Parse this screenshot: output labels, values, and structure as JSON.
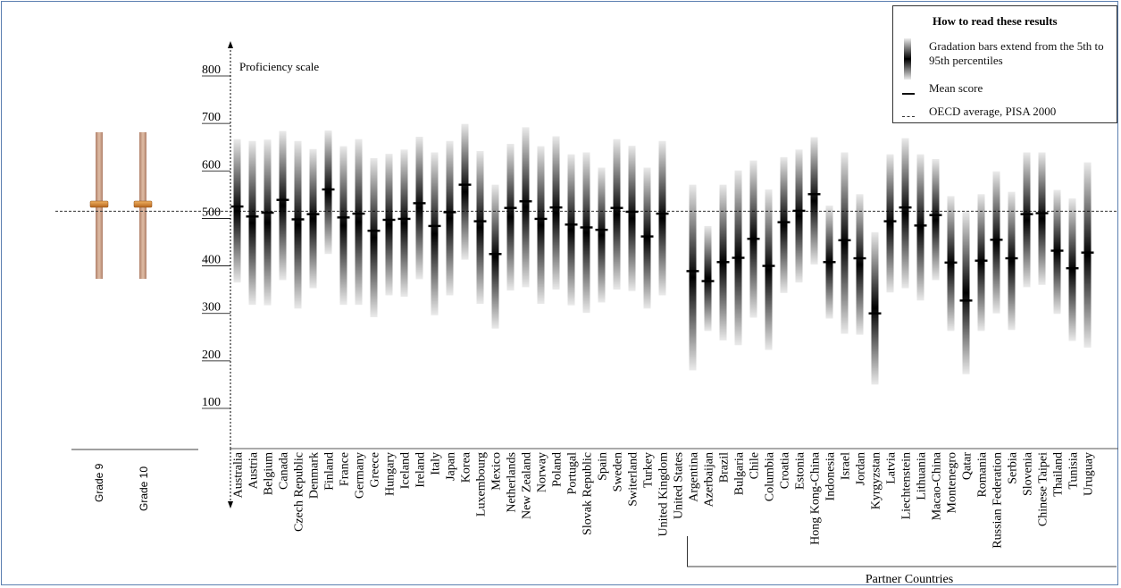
{
  "chart_data": {
    "type": "range-bar",
    "ylabel": "Proficiency scale",
    "yticks": [
      100,
      200,
      300,
      400,
      500,
      600,
      700,
      800
    ],
    "ylim": [
      0,
      850
    ],
    "oecd_average": 500,
    "group_label": "Partner Countries",
    "legend": {
      "title": "How to read these results",
      "gradation": "Gradation bars extend from the 5th to 95th percentiles",
      "mean": "Mean score",
      "oecd": "OECD average, PISA 2000"
    },
    "countries": [
      {
        "name": "Australia",
        "p5": 350,
        "p95": 652,
        "mean": 510,
        "group": "OECD"
      },
      {
        "name": "Austria",
        "p5": 303,
        "p95": 648,
        "mean": 489,
        "group": "OECD"
      },
      {
        "name": "Belgium",
        "p5": 302,
        "p95": 651,
        "mean": 497,
        "group": "OECD"
      },
      {
        "name": "Canada",
        "p5": 355,
        "p95": 669,
        "mean": 524,
        "group": "OECD"
      },
      {
        "name": "Czech Republic",
        "p5": 295,
        "p95": 648,
        "mean": 483,
        "group": "OECD"
      },
      {
        "name": "Denmark",
        "p5": 338,
        "p95": 631,
        "mean": 494,
        "group": "OECD"
      },
      {
        "name": "Finland",
        "p5": 410,
        "p95": 670,
        "mean": 546,
        "group": "OECD"
      },
      {
        "name": "France",
        "p5": 303,
        "p95": 637,
        "mean": 487,
        "group": "OECD"
      },
      {
        "name": "Germany",
        "p5": 303,
        "p95": 652,
        "mean": 495,
        "group": "OECD"
      },
      {
        "name": "Greece",
        "p5": 277,
        "p95": 612,
        "mean": 459,
        "group": "OECD"
      },
      {
        "name": "Hungary",
        "p5": 323,
        "p95": 621,
        "mean": 482,
        "group": "OECD"
      },
      {
        "name": "Iceland",
        "p5": 320,
        "p95": 630,
        "mean": 484,
        "group": "OECD"
      },
      {
        "name": "Ireland",
        "p5": 357,
        "p95": 657,
        "mean": 517,
        "group": "OECD"
      },
      {
        "name": "Italy",
        "p5": 281,
        "p95": 624,
        "mean": 469,
        "group": "OECD"
      },
      {
        "name": "Japan",
        "p5": 323,
        "p95": 648,
        "mean": 498,
        "group": "OECD"
      },
      {
        "name": "Korea",
        "p5": 398,
        "p95": 684,
        "mean": 556,
        "group": "OECD"
      },
      {
        "name": "Luxembourg",
        "p5": 305,
        "p95": 627,
        "mean": 479,
        "group": "OECD"
      },
      {
        "name": "Mexico",
        "p5": 253,
        "p95": 556,
        "mean": 410,
        "group": "OECD"
      },
      {
        "name": "Netherlands",
        "p5": 333,
        "p95": 642,
        "mean": 507,
        "group": "OECD"
      },
      {
        "name": "New Zealand",
        "p5": 340,
        "p95": 677,
        "mean": 521,
        "group": "OECD"
      },
      {
        "name": "Norway",
        "p5": 305,
        "p95": 637,
        "mean": 484,
        "group": "OECD"
      },
      {
        "name": "Poland",
        "p5": 335,
        "p95": 658,
        "mean": 508,
        "group": "OECD"
      },
      {
        "name": "Portugal",
        "p5": 302,
        "p95": 620,
        "mean": 472,
        "group": "OECD"
      },
      {
        "name": "Slovak Republic",
        "p5": 286,
        "p95": 624,
        "mean": 466,
        "group": "OECD"
      },
      {
        "name": "Spain",
        "p5": 308,
        "p95": 592,
        "mean": 461,
        "group": "OECD"
      },
      {
        "name": "Sweden",
        "p5": 335,
        "p95": 652,
        "mean": 507,
        "group": "OECD"
      },
      {
        "name": "Switerland",
        "p5": 332,
        "p95": 638,
        "mean": 499,
        "group": "OECD"
      },
      {
        "name": "Turkey",
        "p5": 295,
        "p95": 592,
        "mean": 447,
        "group": "OECD"
      },
      {
        "name": "United Kingdom",
        "p5": 323,
        "p95": 648,
        "mean": 495,
        "group": "OECD"
      },
      {
        "name": "United States",
        "p5": null,
        "p95": null,
        "mean": null,
        "group": "OECD"
      },
      {
        "name": "Argentina",
        "p5": 165,
        "p95": 556,
        "mean": 374,
        "group": "Partner"
      },
      {
        "name": "Azerbaijan",
        "p5": 248,
        "p95": 469,
        "mean": 353,
        "group": "Partner"
      },
      {
        "name": "Brazil",
        "p5": 228,
        "p95": 556,
        "mean": 393,
        "group": "Partner"
      },
      {
        "name": "Bulgaria",
        "p5": 218,
        "p95": 586,
        "mean": 402,
        "group": "Partner"
      },
      {
        "name": "Chile",
        "p5": 276,
        "p95": 607,
        "mean": 442,
        "group": "Partner"
      },
      {
        "name": "Columbia",
        "p5": 208,
        "p95": 546,
        "mean": 385,
        "group": "Partner"
      },
      {
        "name": "Croatia",
        "p5": 328,
        "p95": 614,
        "mean": 477,
        "group": "Partner"
      },
      {
        "name": "Estonia",
        "p5": 350,
        "p95": 630,
        "mean": 501,
        "group": "Partner"
      },
      {
        "name": "Hong Kong-China",
        "p5": 388,
        "p95": 656,
        "mean": 536,
        "group": "Partner"
      },
      {
        "name": "Indonesia",
        "p5": 274,
        "p95": 512,
        "mean": 393,
        "group": "Partner"
      },
      {
        "name": "Israel",
        "p5": 242,
        "p95": 624,
        "mean": 439,
        "group": "Partner"
      },
      {
        "name": "Jordan",
        "p5": 240,
        "p95": 536,
        "mean": 401,
        "group": "Partner"
      },
      {
        "name": "Kyrgyzstan",
        "p5": 135,
        "p95": 456,
        "mean": 285,
        "group": "Partner"
      },
      {
        "name": "Latvia",
        "p5": 329,
        "p95": 620,
        "mean": 479,
        "group": "Partner"
      },
      {
        "name": "Liechtenstein",
        "p5": 338,
        "p95": 654,
        "mean": 508,
        "group": "Partner"
      },
      {
        "name": "Lithuania",
        "p5": 312,
        "p95": 620,
        "mean": 470,
        "group": "Partner"
      },
      {
        "name": "Macao-China",
        "p5": 355,
        "p95": 610,
        "mean": 492,
        "group": "Partner"
      },
      {
        "name": "Montenegro",
        "p5": 248,
        "p95": 532,
        "mean": 392,
        "group": "Partner"
      },
      {
        "name": "Qatar",
        "p5": 157,
        "p95": 500,
        "mean": 312,
        "group": "Partner"
      },
      {
        "name": "Romania",
        "p5": 248,
        "p95": 536,
        "mean": 396,
        "group": "Partner"
      },
      {
        "name": "Russian Federation",
        "p5": 285,
        "p95": 584,
        "mean": 440,
        "group": "Partner"
      },
      {
        "name": "Serbia",
        "p5": 250,
        "p95": 541,
        "mean": 401,
        "group": "Partner"
      },
      {
        "name": "Slovenia",
        "p5": 340,
        "p95": 624,
        "mean": 494,
        "group": "Partner"
      },
      {
        "name": "Chinese Taipei",
        "p5": 345,
        "p95": 624,
        "mean": 496,
        "group": "Partner"
      },
      {
        "name": "Thailand",
        "p5": 284,
        "p95": 545,
        "mean": 417,
        "group": "Partner"
      },
      {
        "name": "Tunisia",
        "p5": 227,
        "p95": 527,
        "mean": 380,
        "group": "Partner"
      },
      {
        "name": "Uruguay",
        "p5": 213,
        "p95": 603,
        "mean": 413,
        "group": "Partner"
      }
    ]
  },
  "left_panel": {
    "grade_labels": [
      "Grade 9",
      "Grade 10"
    ],
    "bar_color": "#c69a7e",
    "marker_color": "#d9822b"
  }
}
